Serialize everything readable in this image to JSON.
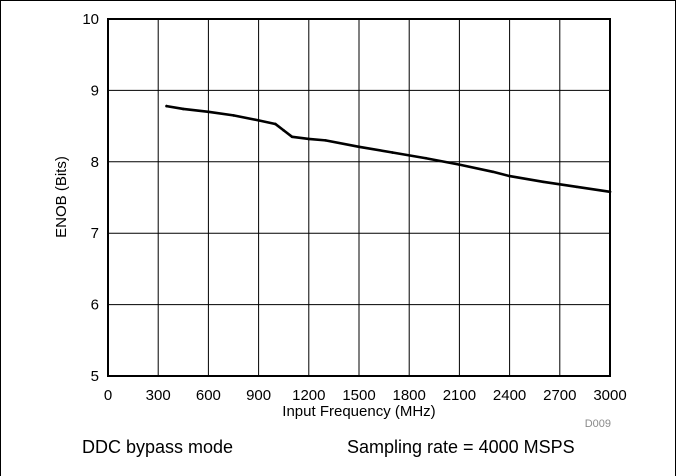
{
  "chart_data": {
    "type": "line",
    "title": "",
    "xlabel": "Input Frequency (MHz)",
    "ylabel": "ENOB (Bits)",
    "xlim": [
      0,
      3000
    ],
    "ylim": [
      5,
      10
    ],
    "x_ticks": [
      0,
      300,
      600,
      900,
      1200,
      1500,
      1800,
      2100,
      2400,
      2700,
      3000
    ],
    "y_ticks": [
      5,
      6,
      7,
      8,
      9,
      10
    ],
    "grid": true,
    "series": [
      {
        "color": "#000000",
        "x": [
          350,
          450,
          600,
          750,
          900,
          1000,
          1050,
          1100,
          1200,
          1300,
          1500,
          1700,
          1900,
          2100,
          2300,
          2400,
          2600,
          2800,
          3000
        ],
        "y": [
          8.78,
          8.74,
          8.7,
          8.65,
          8.58,
          8.53,
          8.44,
          8.35,
          8.32,
          8.3,
          8.21,
          8.13,
          8.05,
          7.96,
          7.86,
          7.8,
          7.72,
          7.65,
          7.58
        ]
      }
    ]
  },
  "figure_id": "D009",
  "caption": {
    "left": "DDC bypass mode",
    "right": "Sampling rate = 4000 MSPS"
  }
}
